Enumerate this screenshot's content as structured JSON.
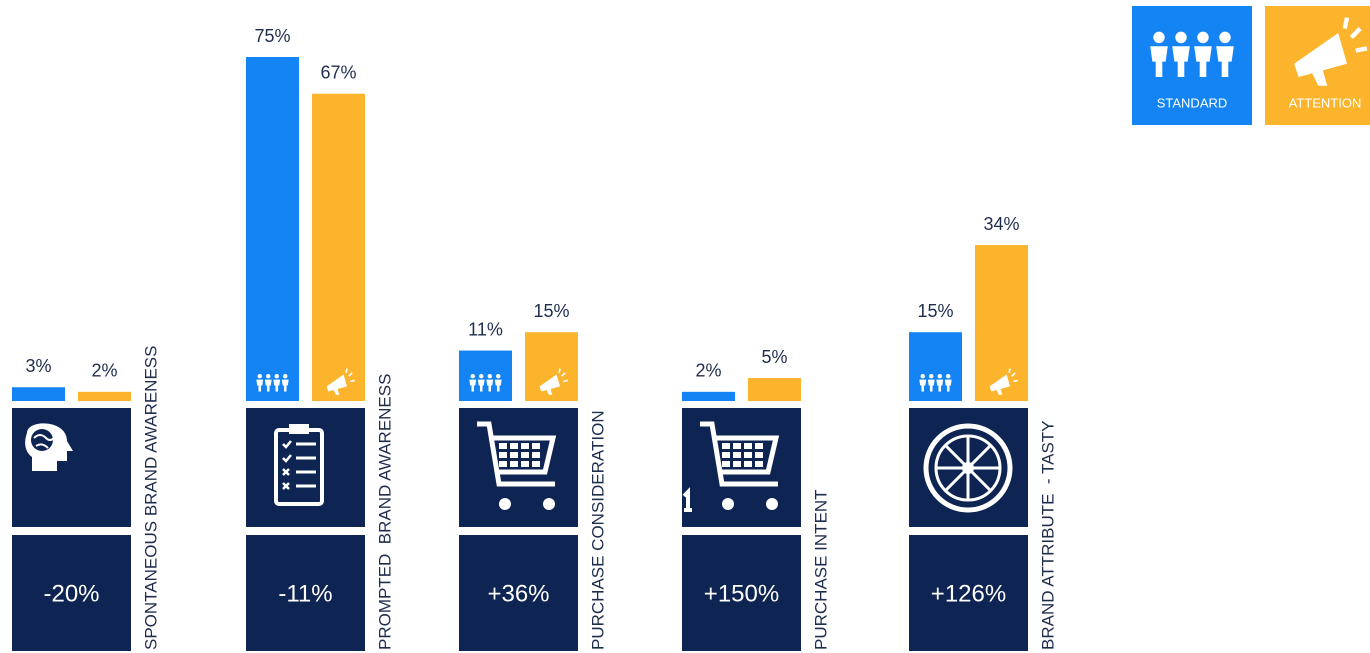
{
  "chart_data": {
    "type": "bar",
    "categories": [
      "SPONTANEOUS BRAND AWARENESS",
      "PROMPTED  BRAND AWARENESS",
      "PURCHASE CONSIDERATION",
      "PURCHASE INTENT",
      "BRAND ATTRIBUTE  - TASTY"
    ],
    "series": [
      {
        "name": "STANDARD",
        "color": "#1484f4",
        "values": [
          3,
          75,
          11,
          2,
          15
        ],
        "value_labels": [
          "3%",
          "75%",
          "11%",
          "2%",
          "15%"
        ]
      },
      {
        "name": "ATTENTION",
        "color": "#fcb42c",
        "values": [
          2,
          67,
          15,
          5,
          34
        ],
        "value_labels": [
          "2%",
          "67%",
          "15%",
          "5%",
          "34%"
        ]
      }
    ],
    "change_values": [
      -20,
      -11,
      36,
      150,
      126
    ],
    "change_labels": [
      "-20%",
      "-11%",
      "+36%",
      "+150%",
      "+126%"
    ],
    "panel_color": "#0e2452"
  }
}
